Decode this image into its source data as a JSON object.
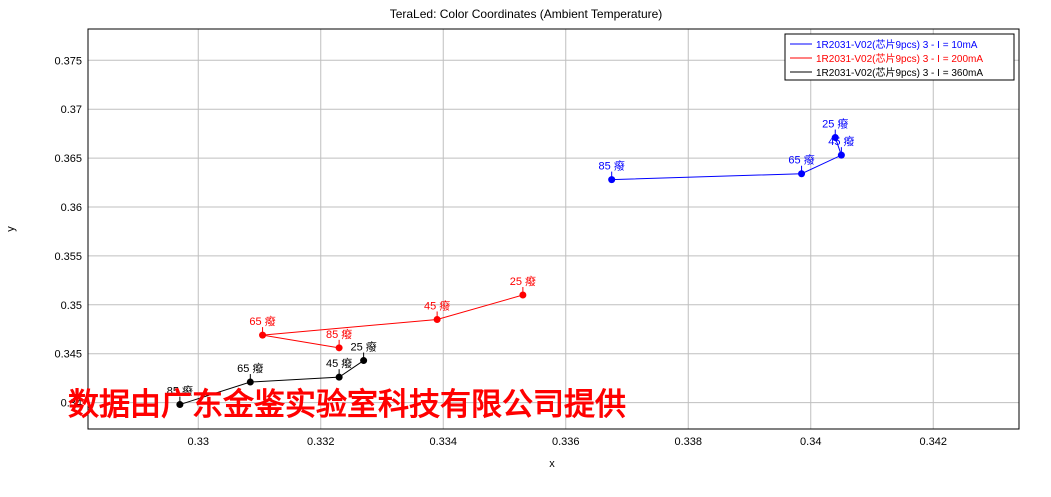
{
  "chart_data": {
    "type": "line",
    "title": "TeraLed: Color Coordinates (Ambient Temperature)",
    "xlabel": "x",
    "ylabel": "y",
    "xlim": [
      0.3282,
      0.3434
    ],
    "ylim": [
      0.3373,
      0.3782
    ],
    "xticks": [
      "0.33",
      "0.332",
      "0.334",
      "0.336",
      "0.338",
      "0.34",
      "0.342"
    ],
    "yticks": [
      "0.34",
      "0.345",
      "0.35",
      "0.355",
      "0.36",
      "0.365",
      "0.37",
      "0.375"
    ],
    "grid": true,
    "legend_position": "top-right",
    "series": [
      {
        "name": "1R2031-V02(芯片9pcs) 3 - I = 10mA",
        "color": "#0000ff",
        "points": [
          {
            "x": 0.33675,
            "y": 0.3628,
            "label": "85 癈"
          },
          {
            "x": 0.33985,
            "y": 0.3634,
            "label": "65 癈"
          },
          {
            "x": 0.3405,
            "y": 0.3653,
            "label": "45 癈"
          },
          {
            "x": 0.3404,
            "y": 0.3671,
            "label": "25 癈"
          }
        ]
      },
      {
        "name": "1R2031-V02(芯片9pcs) 3 - I = 200mA",
        "color": "#ff0000",
        "points": [
          {
            "x": 0.3323,
            "y": 0.3456,
            "label": "85 癈"
          },
          {
            "x": 0.33105,
            "y": 0.3469,
            "label": "65 癈"
          },
          {
            "x": 0.3339,
            "y": 0.3485,
            "label": "45 癈"
          },
          {
            "x": 0.3353,
            "y": 0.351,
            "label": "25 癈"
          }
        ]
      },
      {
        "name": "1R2031-V02(芯片9pcs) 3 - I = 360mA",
        "color": "#000000",
        "points": [
          {
            "x": 0.3297,
            "y": 0.3398,
            "label": "85 癈"
          },
          {
            "x": 0.33085,
            "y": 0.3421,
            "label": "65 癈"
          },
          {
            "x": 0.3323,
            "y": 0.3426,
            "label": "45 癈"
          },
          {
            "x": 0.3327,
            "y": 0.3443,
            "label": "25 癈"
          }
        ]
      }
    ]
  },
  "watermark": {
    "text": "数据由广东金鉴实验室科技有限公司提供",
    "color": "#ff0000"
  }
}
